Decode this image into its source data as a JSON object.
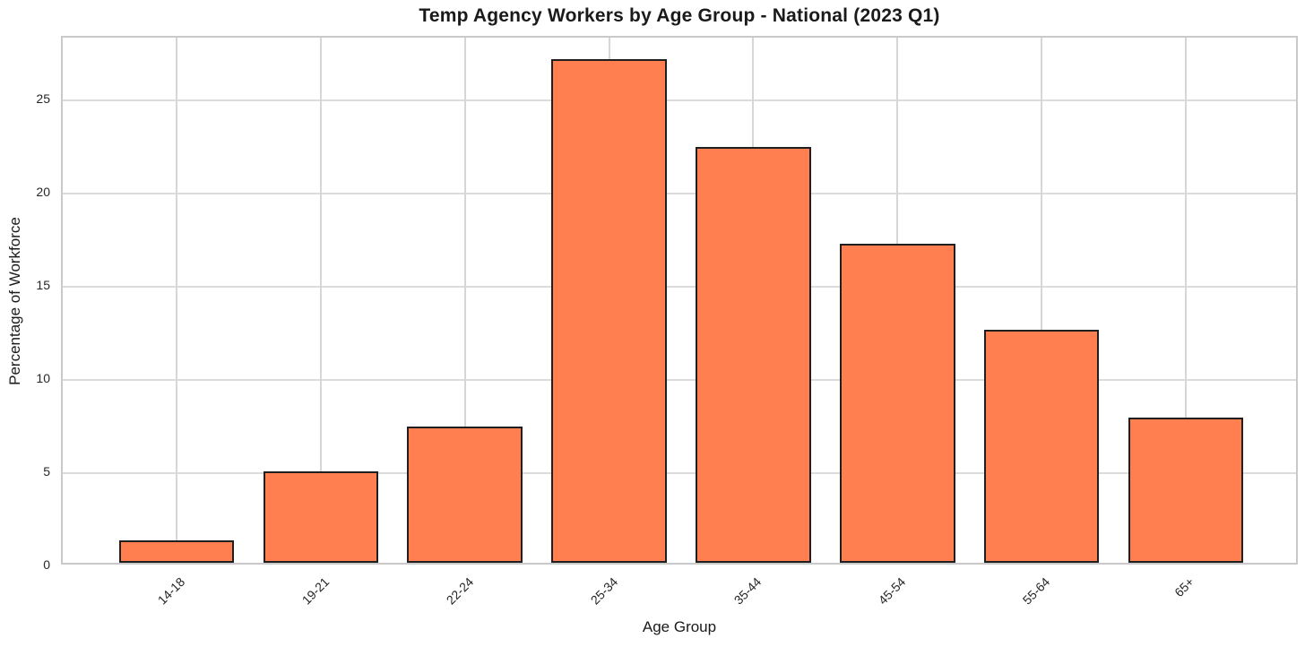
{
  "chart_data": {
    "type": "bar",
    "title": "Temp Agency Workers by Age Group - National (2023 Q1)",
    "xlabel": "Age Group",
    "ylabel": "Percentage of Workforce",
    "categories": [
      "14-18",
      "19-21",
      "22-24",
      "25-34",
      "35-44",
      "45-54",
      "55-64",
      "65+"
    ],
    "values": [
      1.2,
      4.9,
      7.3,
      27.0,
      22.3,
      17.1,
      12.5,
      7.8
    ],
    "yticks": [
      0,
      5,
      10,
      15,
      20,
      25
    ],
    "ylim": [
      0,
      28.35
    ],
    "grid": "on",
    "legend": "none",
    "bar_color": "#FF7F50",
    "bar_edge_color": "#1f1f1f",
    "grid_color": "#dcdcdc",
    "spine_color": "#c9c9c9",
    "text_color": "#1a1a1a",
    "background_color": "#ffffff"
  }
}
